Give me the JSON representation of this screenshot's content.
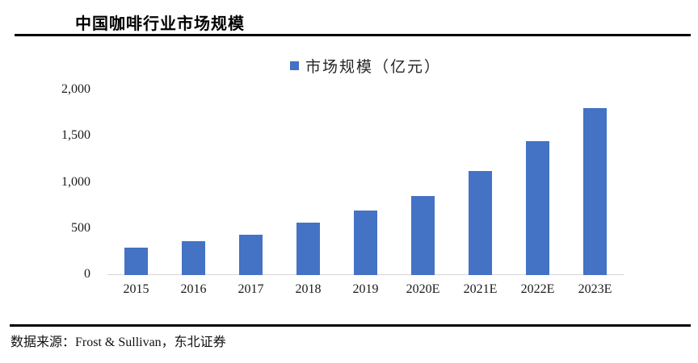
{
  "page": {
    "title": "中国咖啡行业市场规模",
    "source_note": "数据来源：Frost & Sullivan，东北证券"
  },
  "colors": {
    "bar": "#4472C4",
    "axis_line": "#D6D6D6",
    "rule": "#000000",
    "text": "#111111"
  },
  "chart_data": {
    "type": "bar",
    "title": "中国咖啡行业市场规模",
    "legend": [
      "市场规模（亿元）"
    ],
    "legend_position": "top-center",
    "categories": [
      "2015",
      "2016",
      "2017",
      "2018",
      "2019",
      "2020E",
      "2021E",
      "2022E",
      "2023E"
    ],
    "values": [
      300,
      370,
      440,
      570,
      700,
      860,
      1130,
      1450,
      1810
    ],
    "xlabel": "",
    "ylabel": "",
    "ylim": [
      0,
      2000
    ],
    "yticks": [
      0,
      500,
      1000,
      1500,
      2000
    ],
    "ytick_labels": [
      "0",
      "500",
      "1,000",
      "1,500",
      "2,000"
    ],
    "grid": false,
    "bar_color": "#4472C4"
  }
}
